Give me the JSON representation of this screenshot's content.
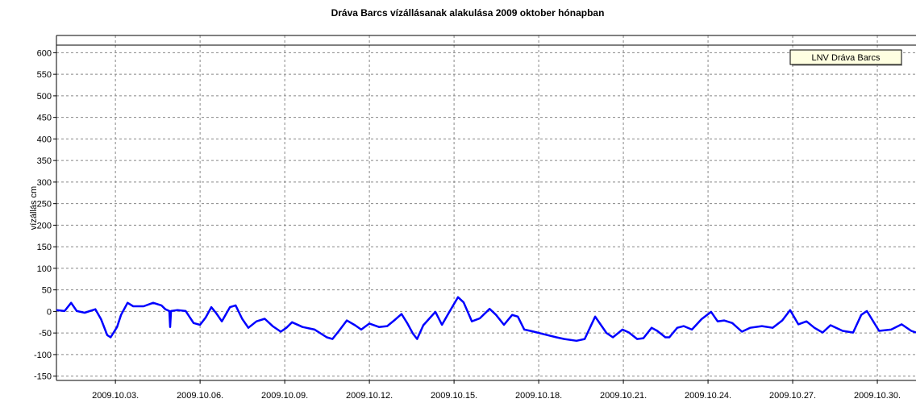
{
  "chart_data": {
    "type": "line",
    "title": "Dráva Barcs vízállásanak alakulása 2009 oktober hónapban",
    "y_label": "vízállás cm",
    "legend_position": "top-right",
    "grid": true,
    "xlim": [
      0.91,
      31.37
    ],
    "ylim": [
      -160,
      640
    ],
    "yticks": [
      -150,
      -100,
      -50,
      0,
      50,
      100,
      150,
      200,
      250,
      300,
      350,
      400,
      450,
      500,
      550,
      600
    ],
    "xticks": [
      {
        "value": 3,
        "label": "2009.10.03."
      },
      {
        "value": 6,
        "label": "2009.10.06."
      },
      {
        "value": 9,
        "label": "2009.10.09."
      },
      {
        "value": 12,
        "label": "2009.10.12."
      },
      {
        "value": 15,
        "label": "2009.10.15."
      },
      {
        "value": 18,
        "label": "2009.10.18."
      },
      {
        "value": 21,
        "label": "2009.10.21."
      },
      {
        "value": 24,
        "label": "2009.10.24."
      },
      {
        "value": 27,
        "label": "2009.10.27."
      },
      {
        "value": 30,
        "label": "2009.10.30."
      }
    ],
    "x": [
      0.91,
      1.2,
      1.43,
      1.63,
      1.91,
      2.29,
      2.49,
      2.71,
      2.83,
      3.06,
      3.2,
      3.43,
      3.63,
      4.0,
      4.34,
      4.63,
      4.77,
      4.91,
      4.94,
      4.97,
      5.2,
      5.49,
      5.77,
      6.0,
      6.2,
      6.4,
      6.57,
      6.77,
      7.06,
      7.26,
      7.49,
      7.71,
      8.0,
      8.29,
      8.57,
      8.86,
      9.06,
      9.26,
      9.63,
      10.06,
      10.49,
      10.69,
      10.91,
      11.2,
      11.49,
      11.71,
      12.0,
      12.34,
      12.63,
      12.91,
      13.14,
      13.34,
      13.54,
      13.69,
      13.91,
      14.34,
      14.57,
      14.77,
      15.14,
      15.34,
      15.63,
      15.91,
      16.26,
      16.49,
      16.77,
      17.06,
      17.26,
      17.49,
      17.77,
      18.2,
      18.63,
      18.91,
      19.34,
      19.63,
      20.0,
      20.2,
      20.4,
      20.63,
      20.97,
      21.2,
      21.49,
      21.71,
      22.0,
      22.2,
      22.49,
      22.63,
      22.91,
      23.14,
      23.43,
      23.77,
      24.11,
      24.34,
      24.57,
      24.86,
      25.2,
      25.49,
      25.91,
      26.29,
      26.63,
      26.91,
      27.2,
      27.49,
      27.77,
      28.06,
      28.34,
      28.77,
      29.14,
      29.43,
      29.63,
      30.06,
      30.49,
      30.86,
      31.2,
      31.37
    ],
    "series": [
      {
        "name": "LNV Dráva Barcs",
        "color": "#0000ff",
        "values": [
          3,
          1,
          20,
          1,
          -3,
          5,
          -18,
          -55,
          -60,
          -36,
          -8,
          20,
          12,
          12,
          20,
          14,
          5,
          1,
          -36,
          1,
          3,
          1,
          -27,
          -31,
          -14,
          10,
          -4,
          -23,
          10,
          14,
          -17,
          -38,
          -23,
          -17,
          -34,
          -47,
          -38,
          -25,
          -36,
          -42,
          -60,
          -64,
          -46,
          -21,
          -32,
          -42,
          -28,
          -36,
          -34,
          -19,
          -6,
          -27,
          -51,
          -64,
          -32,
          -1,
          -31,
          -8,
          33,
          21,
          -23,
          -16,
          6,
          -8,
          -31,
          -8,
          -12,
          -42,
          -46,
          -53,
          -60,
          -64,
          -68,
          -64,
          -12,
          -31,
          -50,
          -60,
          -42,
          -49,
          -64,
          -62,
          -38,
          -45,
          -60,
          -60,
          -38,
          -34,
          -42,
          -18,
          -1,
          -23,
          -21,
          -27,
          -47,
          -38,
          -34,
          -38,
          -21,
          3,
          -30,
          -23,
          -38,
          -49,
          -32,
          -45,
          -49,
          -8,
          1,
          -45,
          -42,
          -30,
          -45,
          -49
        ]
      }
    ]
  }
}
